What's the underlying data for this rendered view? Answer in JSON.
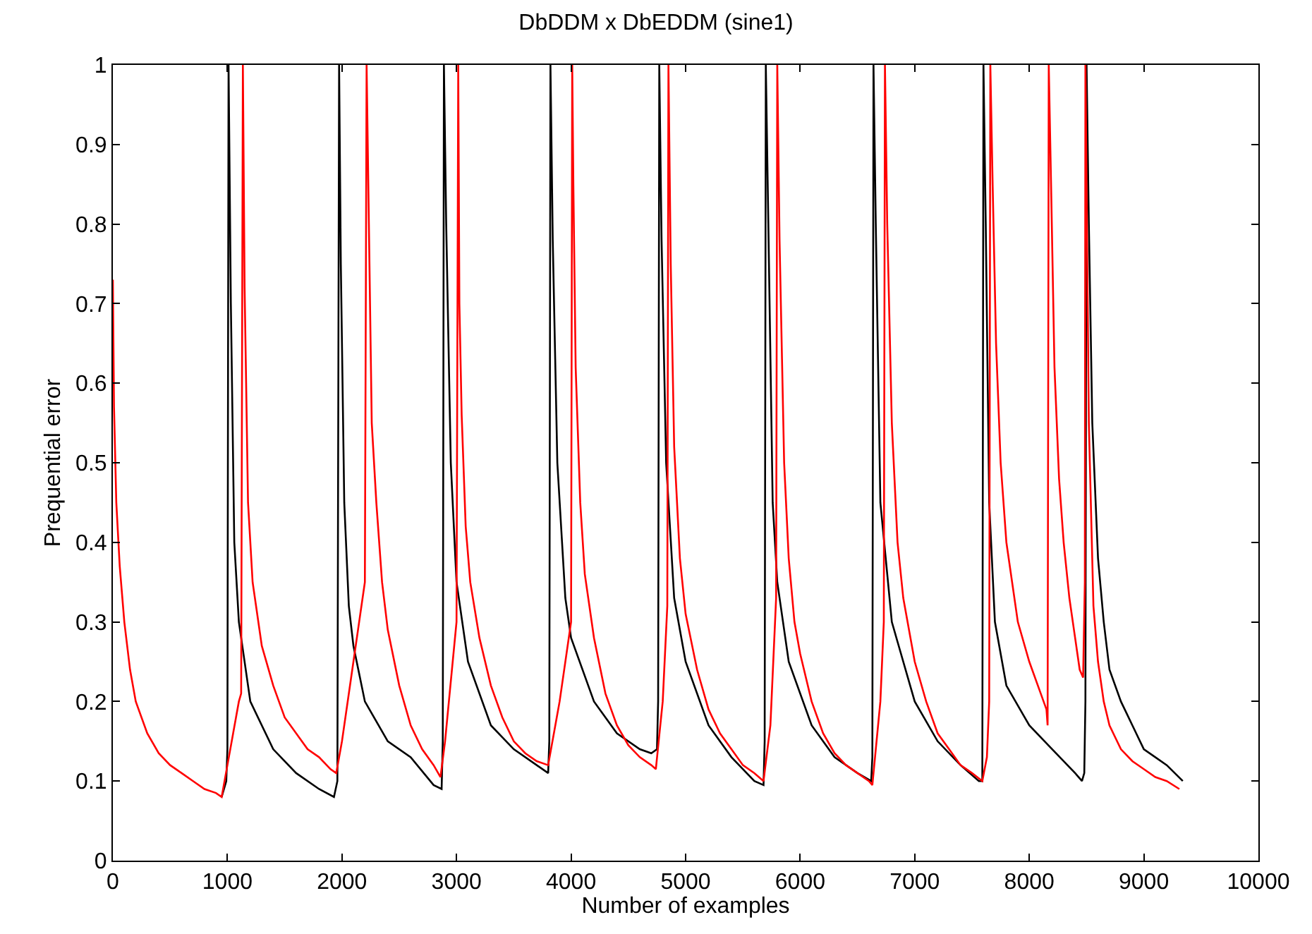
{
  "chart_data": {
    "type": "line",
    "title": "DbDDM x DbEDDM (sine1)",
    "xlabel": "Number of examples",
    "ylabel": "Prequential error",
    "xlim": [
      0,
      10000
    ],
    "xticks": [
      0,
      1000,
      2000,
      3000,
      4000,
      5000,
      6000,
      7000,
      8000,
      9000,
      10000
    ],
    "ylim": [
      0,
      1
    ],
    "yticks": [
      0,
      0.1,
      0.2,
      0.3,
      0.4,
      0.5,
      0.6,
      0.7,
      0.8,
      0.9,
      1
    ],
    "marker": "none",
    "line_style": "solid",
    "series": [
      {
        "color": "#000000",
        "x": [
          950,
          990,
          1000,
          1010,
          1030,
          1060,
          1100,
          1200,
          1400,
          1600,
          1800,
          1930,
          1960,
          1975,
          1990,
          2020,
          2060,
          2100,
          2200,
          2400,
          2600,
          2800,
          2870,
          2880,
          2890,
          2910,
          2950,
          3000,
          3100,
          3300,
          3500,
          3700,
          3800,
          3810,
          3820,
          3840,
          3880,
          3950,
          4000,
          4200,
          4400,
          4600,
          4700,
          4750,
          4760,
          4770,
          4790,
          4830,
          4900,
          5000,
          5200,
          5400,
          5600,
          5680,
          5690,
          5700,
          5720,
          5760,
          5800,
          5900,
          6100,
          6300,
          6500,
          6620,
          6630,
          6640,
          6660,
          6700,
          6800,
          7000,
          7200,
          7400,
          7560,
          7590,
          7600,
          7620,
          7650,
          7700,
          7800,
          8000,
          8200,
          8400,
          8460,
          8480,
          8490,
          8500,
          8520,
          8550,
          8600,
          8650,
          8700,
          8800,
          8900,
          9000,
          9100,
          9200,
          9340
        ],
        "values": [
          0.08,
          0.1,
          0.14,
          1.0,
          0.7,
          0.4,
          0.3,
          0.2,
          0.14,
          0.11,
          0.09,
          0.08,
          0.1,
          1.0,
          0.75,
          0.45,
          0.32,
          0.27,
          0.2,
          0.15,
          0.13,
          0.095,
          0.09,
          0.15,
          1.0,
          0.8,
          0.5,
          0.35,
          0.25,
          0.17,
          0.14,
          0.12,
          0.11,
          0.15,
          1.0,
          0.78,
          0.5,
          0.33,
          0.28,
          0.2,
          0.16,
          0.14,
          0.135,
          0.14,
          0.2,
          1.0,
          0.78,
          0.5,
          0.33,
          0.25,
          0.17,
          0.13,
          0.1,
          0.095,
          0.15,
          1.0,
          0.82,
          0.45,
          0.35,
          0.25,
          0.17,
          0.13,
          0.11,
          0.1,
          0.13,
          1.0,
          0.8,
          0.45,
          0.3,
          0.2,
          0.15,
          0.12,
          0.1,
          0.1,
          1.0,
          0.8,
          0.45,
          0.3,
          0.22,
          0.17,
          0.14,
          0.11,
          0.1,
          0.11,
          0.2,
          1.0,
          0.8,
          0.55,
          0.38,
          0.3,
          0.24,
          0.2,
          0.17,
          0.14,
          0.13,
          0.12,
          0.1
        ]
      },
      {
        "color": "#ff0000",
        "x": [
          0,
          10,
          30,
          60,
          100,
          150,
          200,
          300,
          400,
          500,
          600,
          700,
          800,
          900,
          950,
          1000,
          1050,
          1100,
          1120,
          1135,
          1150,
          1180,
          1220,
          1300,
          1400,
          1500,
          1600,
          1700,
          1800,
          1900,
          1950,
          2000,
          2100,
          2200,
          2215,
          2235,
          2260,
          2300,
          2350,
          2400,
          2500,
          2600,
          2700,
          2800,
          2860,
          2900,
          3000,
          3015,
          3025,
          3045,
          3080,
          3120,
          3200,
          3300,
          3400,
          3500,
          3600,
          3700,
          3800,
          3900,
          4000,
          4010,
          4020,
          4040,
          4080,
          4120,
          4200,
          4300,
          4400,
          4500,
          4600,
          4700,
          4740,
          4800,
          4840,
          4850,
          4870,
          4900,
          4950,
          5000,
          5100,
          5200,
          5300,
          5400,
          5500,
          5600,
          5680,
          5740,
          5790,
          5800,
          5820,
          5860,
          5900,
          5950,
          6000,
          6100,
          6200,
          6300,
          6400,
          6500,
          6600,
          6630,
          6700,
          6730,
          6740,
          6760,
          6800,
          6850,
          6900,
          7000,
          7100,
          7200,
          7300,
          7400,
          7500,
          7590,
          7630,
          7650,
          7660,
          7680,
          7710,
          7750,
          7800,
          7900,
          8000,
          8100,
          8150,
          8160,
          8170,
          8190,
          8220,
          8260,
          8300,
          8350,
          8400,
          8440,
          8470,
          8485,
          8490,
          8520,
          8560,
          8600,
          8650,
          8700,
          8800,
          8900,
          9000,
          9100,
          9200,
          9310
        ],
        "values": [
          0.73,
          0.57,
          0.45,
          0.37,
          0.3,
          0.24,
          0.2,
          0.16,
          0.135,
          0.12,
          0.11,
          0.1,
          0.09,
          0.085,
          0.08,
          0.12,
          0.16,
          0.2,
          0.21,
          1.0,
          0.72,
          0.45,
          0.35,
          0.27,
          0.22,
          0.18,
          0.16,
          0.14,
          0.13,
          0.115,
          0.11,
          0.15,
          0.25,
          0.35,
          1.0,
          0.8,
          0.55,
          0.45,
          0.35,
          0.29,
          0.22,
          0.17,
          0.14,
          0.12,
          0.105,
          0.15,
          0.3,
          1.0,
          0.7,
          0.56,
          0.42,
          0.35,
          0.28,
          0.22,
          0.18,
          0.15,
          0.135,
          0.125,
          0.12,
          0.2,
          0.3,
          1.0,
          0.85,
          0.62,
          0.45,
          0.36,
          0.28,
          0.21,
          0.17,
          0.145,
          0.13,
          0.12,
          0.115,
          0.2,
          0.32,
          1.0,
          0.75,
          0.52,
          0.38,
          0.31,
          0.24,
          0.19,
          0.16,
          0.14,
          0.12,
          0.11,
          0.1,
          0.17,
          0.33,
          1.0,
          0.78,
          0.5,
          0.38,
          0.3,
          0.26,
          0.2,
          0.16,
          0.135,
          0.12,
          0.11,
          0.1,
          0.095,
          0.2,
          0.3,
          1.0,
          0.8,
          0.55,
          0.4,
          0.33,
          0.25,
          0.2,
          0.16,
          0.14,
          0.12,
          0.11,
          0.1,
          0.13,
          0.2,
          1.0,
          0.85,
          0.65,
          0.5,
          0.4,
          0.3,
          0.25,
          0.21,
          0.19,
          0.17,
          1.0,
          0.85,
          0.62,
          0.48,
          0.4,
          0.33,
          0.28,
          0.24,
          0.23,
          0.35,
          1.0,
          0.55,
          0.32,
          0.25,
          0.2,
          0.17,
          0.14,
          0.125,
          0.115,
          0.105,
          0.1,
          0.09
        ]
      }
    ]
  }
}
